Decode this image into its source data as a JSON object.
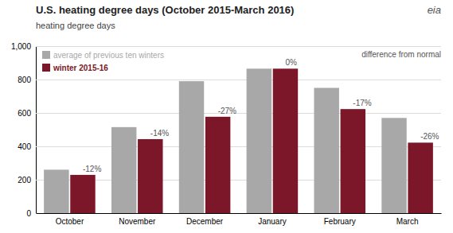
{
  "chart_data": {
    "type": "bar",
    "title": "U.S. heating degree days (October 2015-March 2016)",
    "ylabel": "heating degree days",
    "categories": [
      "October",
      "November",
      "December",
      "January",
      "February",
      "March"
    ],
    "series": [
      {
        "name": "average of previous ten winters",
        "color": "#a8a8a8",
        "values": [
          260,
          515,
          790,
          865,
          750,
          570
        ]
      },
      {
        "name": "winter 2015-16",
        "color": "#7b1728",
        "values": [
          229,
          443,
          577,
          865,
          623,
          422
        ],
        "difference_labels": [
          "-12%",
          "-14%",
          "-27%",
          "0%",
          "-17%",
          "-26%"
        ]
      }
    ],
    "ylim": [
      0,
      1000
    ],
    "yticks": [
      0,
      200,
      400,
      600,
      800,
      {
        "value": 1000,
        "label": "1,000"
      }
    ],
    "grid": true,
    "legend": "upper left",
    "annotations": [
      "difference from normal",
      "eia"
    ]
  }
}
